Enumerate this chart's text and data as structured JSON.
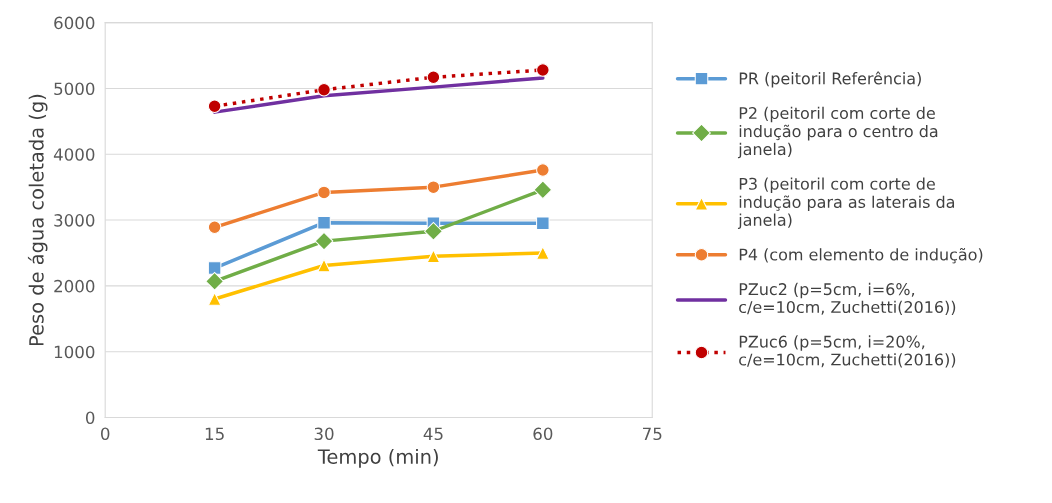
{
  "chart_data": {
    "type": "line",
    "xlabel": "Tempo (min)",
    "ylabel": "Peso de água coletada (g)",
    "x": [
      15,
      30,
      45,
      60
    ],
    "xlim": [
      0,
      75
    ],
    "xticks": [
      0,
      15,
      30,
      45,
      60,
      75
    ],
    "ylim": [
      0,
      6000
    ],
    "yticks": [
      0,
      1000,
      2000,
      3000,
      4000,
      5000,
      6000
    ],
    "grid": "y",
    "legend": "right",
    "series": [
      {
        "name": "PR (peitoril Referência)",
        "color": "#5b9bd5",
        "marker": "square",
        "values": [
          2270,
          2960,
          2950,
          2950
        ]
      },
      {
        "name": "P2 (peitoril com corte de indução para o centro da janela)",
        "color": "#70ad47",
        "marker": "diamond",
        "values": [
          2070,
          2680,
          2830,
          3460
        ]
      },
      {
        "name": "P3 (peitoril com corte de indução para as laterais da janela)",
        "color": "#ffc000",
        "marker": "triangle",
        "values": [
          1800,
          2310,
          2450,
          2500
        ]
      },
      {
        "name": "P4 (com elemento de indução)",
        "color": "#ed7d31",
        "marker": "circle",
        "values": [
          2890,
          3420,
          3500,
          3760
        ]
      },
      {
        "name": "PZuc2 (p=5cm, i=6%, c/e=10cm, Zuchetti(2016))",
        "color": "#7030a0",
        "marker": "none",
        "values": [
          4640,
          4890,
          5020,
          5160
        ]
      },
      {
        "name": "PZuc6 (p=5cm, i=20%, c/e=10cm, Zuchetti(2016))",
        "color": "#c00000",
        "marker": "circle",
        "line_style": "dotted",
        "values": [
          4730,
          4980,
          5170,
          5280
        ]
      }
    ]
  }
}
